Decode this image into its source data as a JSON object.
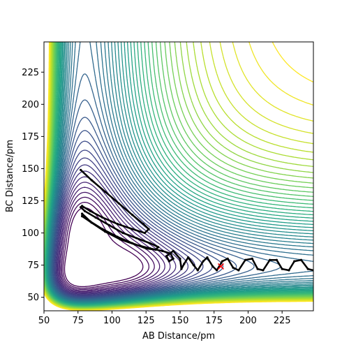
{
  "chart_data": {
    "type": "contour-trajectory",
    "xlabel": "AB Distance/pm",
    "ylabel": "BC Distance/pm",
    "xlim": [
      50,
      248
    ],
    "ylim": [
      39.5,
      248.5
    ],
    "xticks": [
      50,
      75,
      100,
      125,
      150,
      175,
      200,
      225
    ],
    "yticks": [
      50,
      75,
      100,
      125,
      150,
      175,
      200,
      225
    ],
    "series": [
      {
        "color": "#000000",
        "x": [
          77,
          85,
          95,
          105,
          115,
          123,
          127,
          124,
          115,
          104,
          93,
          84,
          78,
          77,
          80,
          88,
          98,
          108,
          118,
          128,
          134,
          132,
          125,
          115,
          104,
          93,
          84,
          78,
          78,
          85,
          95,
          106,
          117,
          128,
          137,
          143,
          145,
          142,
          140,
          145,
          150,
          151,
          153,
          156,
          160,
          163,
          167,
          170,
          174,
          177,
          181,
          185,
          189,
          193,
          198,
          203,
          207,
          211,
          216,
          221,
          225,
          230,
          234,
          239,
          244,
          248
        ],
        "y": [
          149,
          141,
          132,
          123,
          114,
          107,
          103,
          100,
          103,
          107,
          112,
          117,
          121,
          120,
          117,
          112,
          106,
          100,
          96,
          92,
          89,
          87,
          88,
          92,
          97,
          103,
          109,
          115,
          113,
          108,
          101,
          95,
          91,
          88,
          86,
          84,
          80,
          78,
          82,
          86,
          80,
          72,
          76,
          81,
          75,
          71,
          78,
          81,
          74,
          71,
          78,
          80,
          73,
          71,
          79,
          80,
          72,
          71,
          79,
          79,
          72,
          71,
          78,
          79,
          72,
          71
        ]
      }
    ],
    "point": {
      "x": 180,
      "y": 74,
      "color": "#ff0000"
    }
  }
}
